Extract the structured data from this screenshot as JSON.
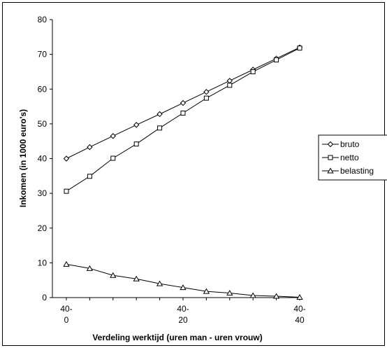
{
  "chart_data": {
    "type": "line",
    "xlabel": "Verdeling werktijd (uren man - uren vrouw)",
    "ylabel": "Inkomen (in 1000 euro's)",
    "ylim": [
      0,
      80
    ],
    "yticks": [
      "0",
      "10",
      "20",
      "30",
      "40",
      "50",
      "60",
      "70",
      "80"
    ],
    "x_tick_labels": [
      {
        "index": 0,
        "line1": "40-",
        "line2": "0"
      },
      {
        "index": 5,
        "line1": "40-",
        "line2": "20"
      },
      {
        "index": 10,
        "line1": "40-",
        "line2": "40"
      }
    ],
    "x": [
      0,
      4,
      8,
      12,
      16,
      20,
      24,
      28,
      32,
      36,
      40
    ],
    "grid": false,
    "legend_position": "right",
    "series": [
      {
        "name": "bruto",
        "marker": "diamond",
        "values": [
          40.0,
          43.3,
          46.5,
          49.7,
          52.8,
          56.0,
          59.2,
          62.4,
          65.6,
          68.8,
          72.0
        ]
      },
      {
        "name": "netto",
        "marker": "square",
        "values": [
          30.6,
          34.9,
          40.1,
          44.2,
          48.8,
          53.1,
          57.4,
          61.1,
          65.0,
          68.4,
          71.8
        ]
      },
      {
        "name": "belasting",
        "marker": "triangle",
        "values": [
          9.6,
          8.4,
          6.4,
          5.4,
          4.0,
          2.9,
          1.8,
          1.3,
          0.6,
          0.4,
          0.1
        ]
      }
    ]
  }
}
